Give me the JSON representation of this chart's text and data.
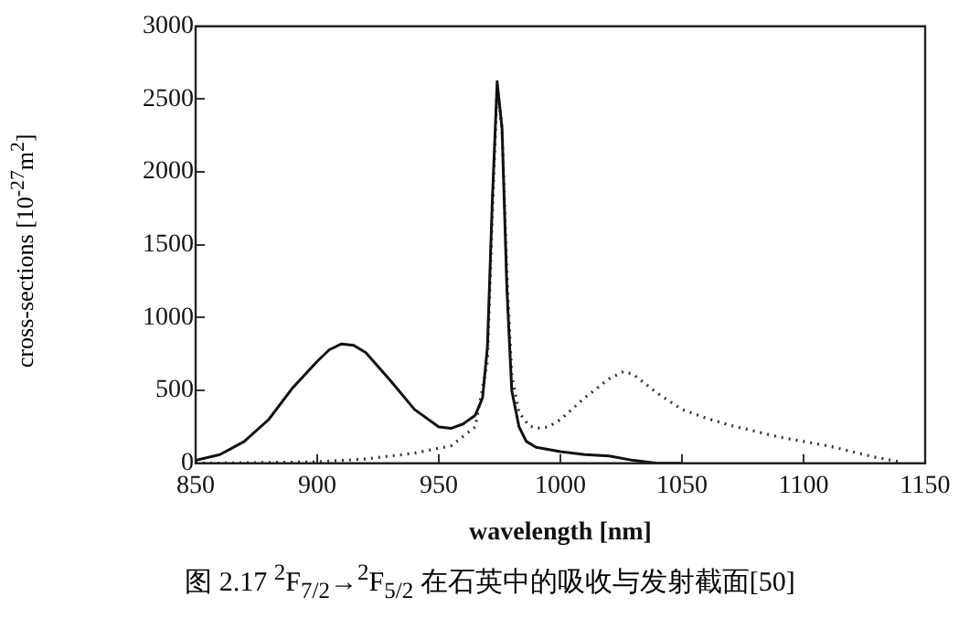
{
  "chart_data": {
    "type": "line",
    "title": "图 2.17 $^{2}$F$_{7/2}$→$^{2}$F$_{5/2}$ 在石英中的吸收与发射截面[50]",
    "xlabel": "wavelength [nm]",
    "ylabel": "cross-sections [10$^{-27}$m$^{2}$]",
    "xlim": [
      850,
      1150
    ],
    "xticks": [
      850,
      900,
      950,
      1000,
      1050,
      1100,
      1150
    ],
    "ylim": [
      0,
      3000
    ],
    "yticks": [
      0,
      500,
      1000,
      1500,
      2000,
      2500,
      3000
    ],
    "grid": false,
    "legend": false,
    "marker": "none",
    "series": [
      {
        "color": "#111111",
        "line_style": "solid",
        "x": [
          850,
          860,
          870,
          880,
          890,
          900,
          905,
          910,
          915,
          920,
          930,
          940,
          950,
          955,
          960,
          965,
          968,
          970,
          972,
          974,
          976,
          978,
          980,
          983,
          986,
          990,
          1000,
          1010,
          1020,
          1030,
          1040,
          1050
        ],
        "values": [
          20,
          60,
          150,
          300,
          520,
          700,
          780,
          820,
          810,
          760,
          570,
          370,
          250,
          240,
          270,
          330,
          450,
          800,
          1800,
          2620,
          2300,
          1200,
          500,
          250,
          150,
          110,
          80,
          60,
          50,
          20,
          0,
          0
        ]
      },
      {
        "color": "#333333",
        "line_style": "dotted",
        "x": [
          850,
          900,
          920,
          940,
          955,
          965,
          970,
          972,
          974,
          976,
          978,
          980,
          983,
          987,
          990,
          995,
          1000,
          1010,
          1020,
          1026,
          1030,
          1040,
          1050,
          1060,
          1070,
          1080,
          1090,
          1100,
          1110,
          1120,
          1130,
          1140
        ],
        "values": [
          0,
          10,
          30,
          70,
          120,
          250,
          700,
          1700,
          2580,
          2300,
          1300,
          600,
          350,
          260,
          240,
          250,
          300,
          450,
          580,
          630,
          610,
          480,
          370,
          310,
          260,
          220,
          180,
          150,
          120,
          80,
          40,
          10
        ]
      }
    ]
  }
}
